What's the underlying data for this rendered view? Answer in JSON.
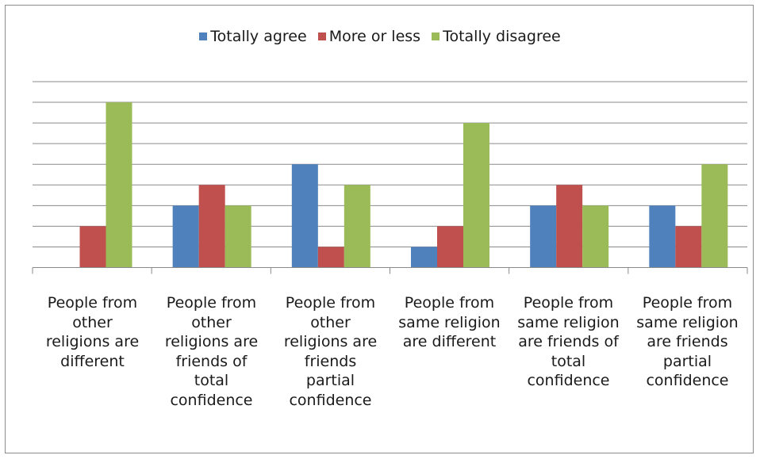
{
  "chart_data": {
    "type": "bar",
    "categories": [
      "People from\nother\nreligions are\ndifferent",
      "People from\nother\nreligions are\nfriends of\ntotal\nconfidence",
      "People from\nother\nreligions are\nfriends\npartial\nconfidence",
      "People from\nsame religion\nare different",
      "People from\nsame religion\nare friends of\ntotal\nconfidence",
      "People from\nsame religion\nare friends\npartial\nconfidence"
    ],
    "series": [
      {
        "name": "Totally agree",
        "color": "#4f81bd",
        "values": [
          0,
          3,
          5,
          1,
          3,
          3
        ]
      },
      {
        "name": "More or less",
        "color": "#c0504d",
        "values": [
          2,
          4,
          1,
          2,
          4,
          2
        ]
      },
      {
        "name": "Totally disagree",
        "color": "#9bbb59",
        "values": [
          8,
          3,
          4,
          7,
          3,
          5
        ]
      }
    ],
    "title": "",
    "xlabel": "",
    "ylabel": "",
    "ylim": [
      0,
      9
    ],
    "grid": true,
    "legend_position": "top"
  }
}
